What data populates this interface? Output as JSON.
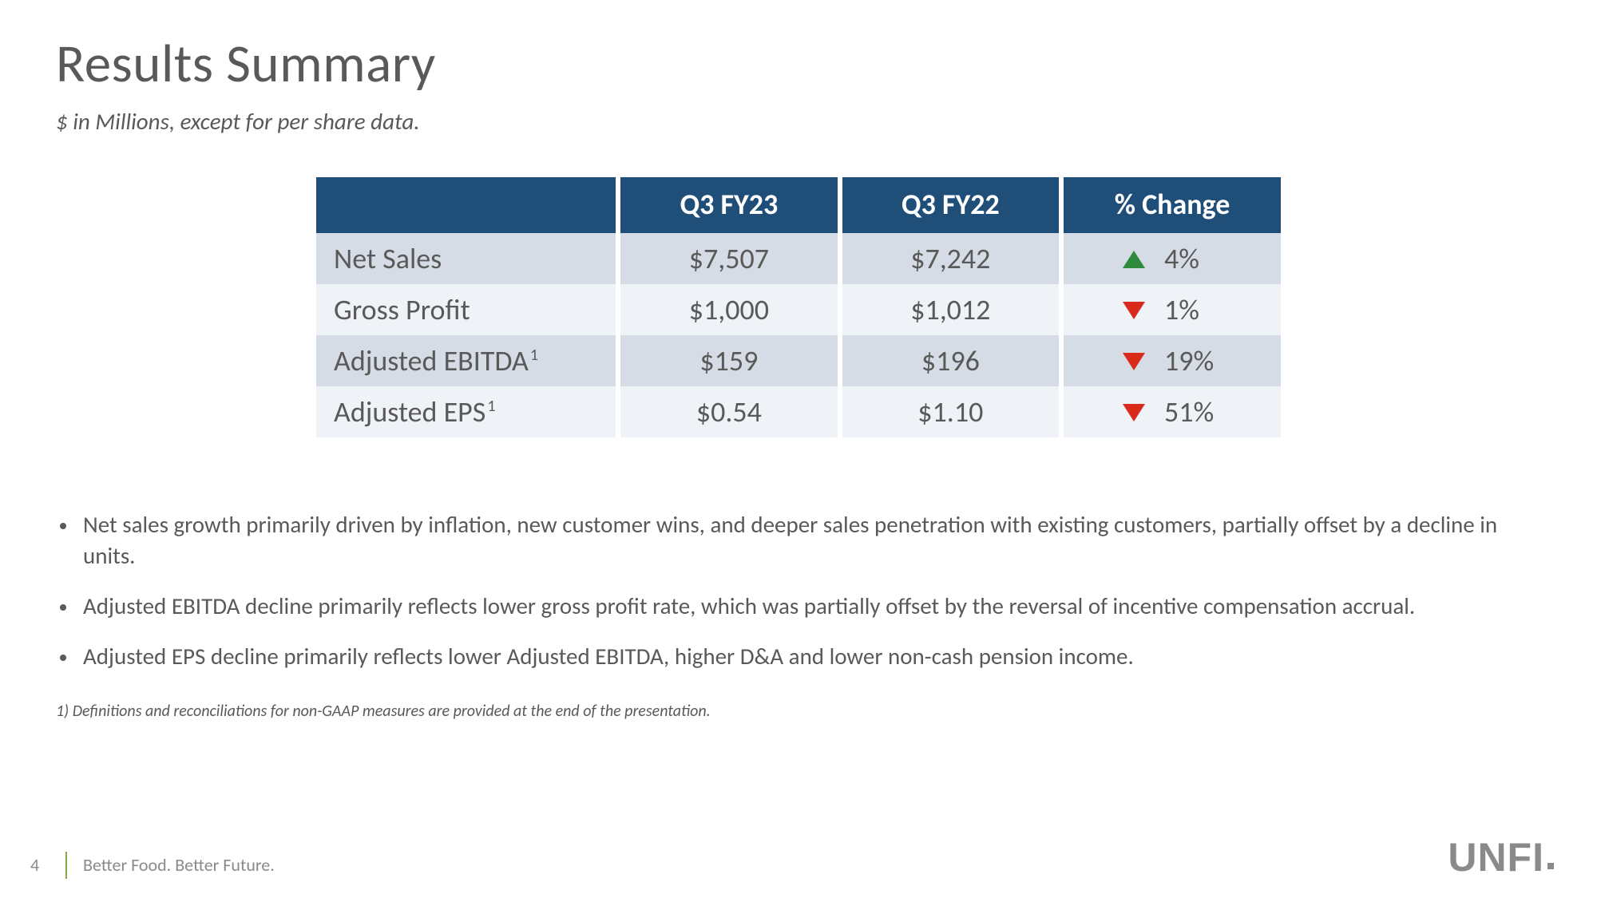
{
  "title": "Results Summary",
  "subtitle": "$ in Millions, except for per share data.",
  "table": {
    "header_bg": "#1f4e79",
    "header_fg": "#ffffff",
    "band_a": "#d6dce5",
    "band_b": "#eff2f7",
    "up_color": "#2e8b3d",
    "down_color": "#d92a1c",
    "columns": [
      "",
      "Q3 FY23",
      "Q3 FY22",
      "% Change"
    ],
    "rows": [
      {
        "metric": "Net Sales",
        "sup": "",
        "fy23": "$7,507",
        "fy22": "$7,242",
        "dir": "up",
        "pct": "4%"
      },
      {
        "metric": "Gross Profit",
        "sup": "",
        "fy23": "$1,000",
        "fy22": "$1,012",
        "dir": "down",
        "pct": "1%"
      },
      {
        "metric": "Adjusted EBITDA",
        "sup": "1",
        "fy23": "$159",
        "fy22": "$196",
        "dir": "down",
        "pct": "19%"
      },
      {
        "metric": "Adjusted EPS",
        "sup": "1",
        "fy23": "$0.54",
        "fy22": "$1.10",
        "dir": "down",
        "pct": "51%"
      }
    ]
  },
  "bullets": [
    "Net sales growth primarily driven by inflation, new customer wins, and deeper sales penetration with existing customers, partially offset by a decline in units.",
    "Adjusted EBITDA decline primarily reflects lower gross profit rate, which was partially offset by the reversal of incentive compensation accrual.",
    "Adjusted EPS decline primarily reflects lower Adjusted EBITDA, higher D&A and lower non-cash pension income."
  ],
  "footnote": "1) Definitions and reconciliations for non-GAAP measures are provided at the end of the presentation.",
  "footer": {
    "page": "4",
    "tagline": "Better Food. Better Future.",
    "logo": "UNFI"
  }
}
